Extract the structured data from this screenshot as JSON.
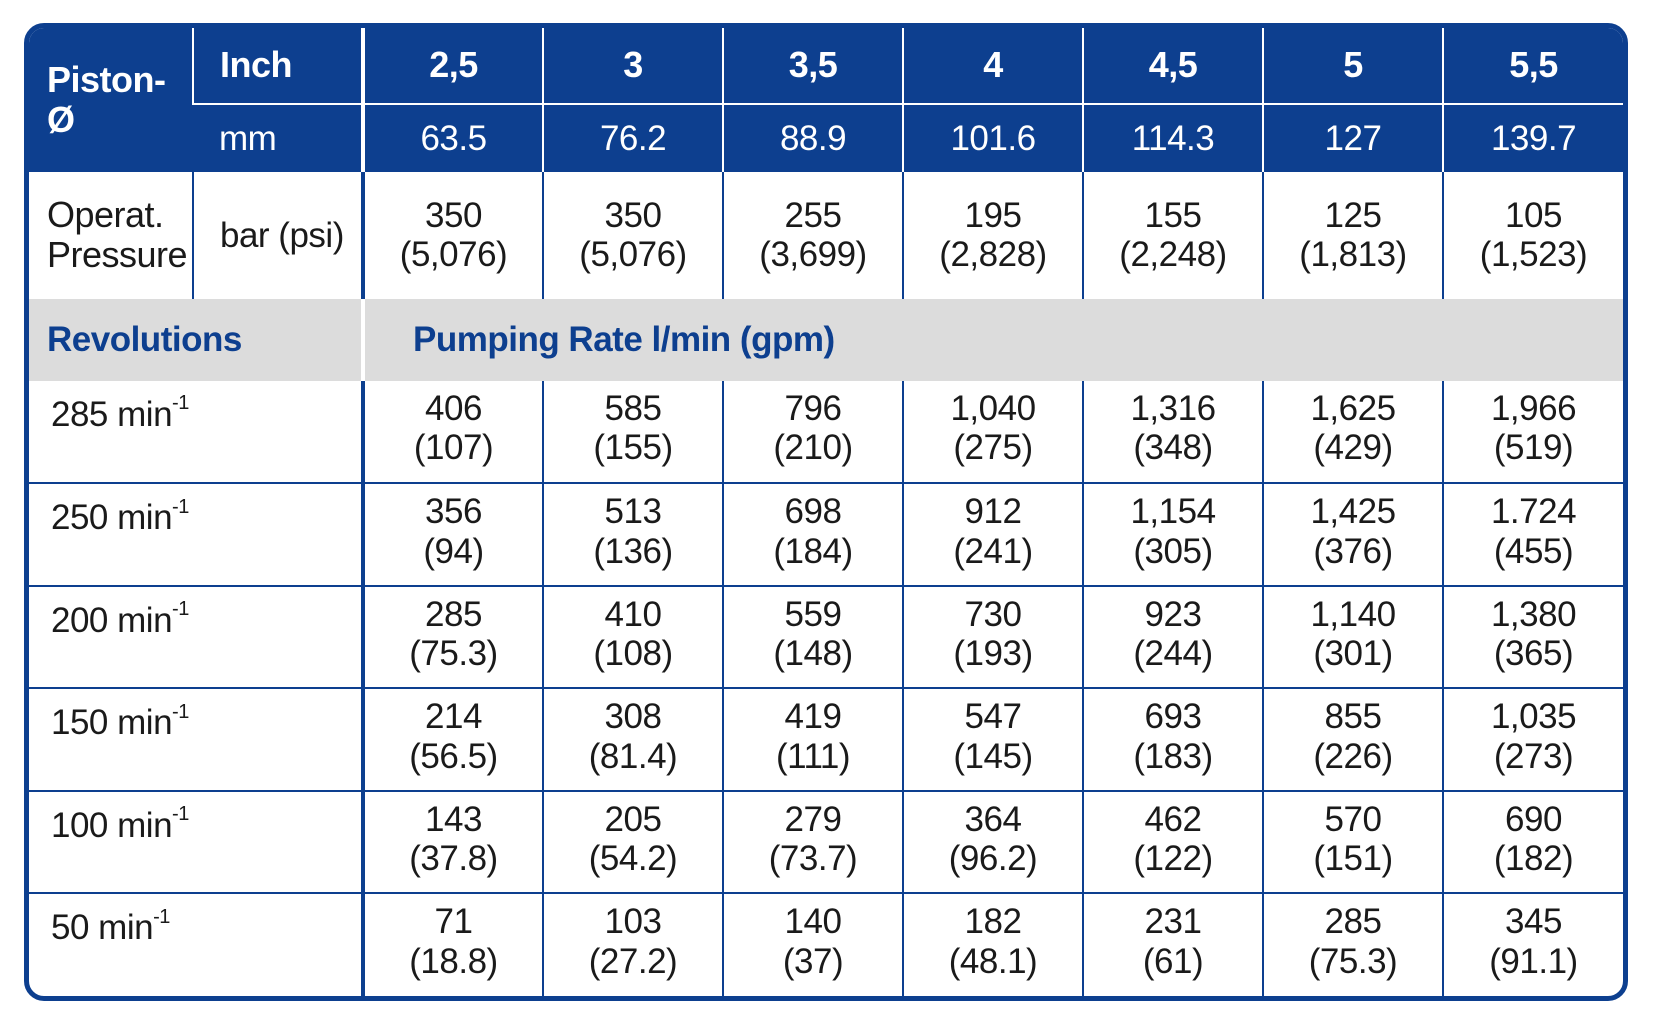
{
  "header": {
    "piston_label": "Piston-Ø",
    "inch_label": "Inch",
    "mm_label": "mm",
    "inch_values": [
      "2,5",
      "3",
      "3,5",
      "4",
      "4,5",
      "5",
      "5,5"
    ],
    "mm_values": [
      "63.5",
      "76.2",
      "88.9",
      "101.6",
      "114.3",
      "127",
      "139.7"
    ]
  },
  "pressure": {
    "label_line1": "Operat.",
    "label_line2": "Pressure",
    "unit": "bar (psi)",
    "values": [
      {
        "main": "350",
        "sub": "(5,076)"
      },
      {
        "main": "350",
        "sub": "(5,076)"
      },
      {
        "main": "255",
        "sub": "(3,699)"
      },
      {
        "main": "195",
        "sub": "(2,828)"
      },
      {
        "main": "155",
        "sub": "(2,248)"
      },
      {
        "main": "125",
        "sub": "(1,813)"
      },
      {
        "main": "105",
        "sub": "(1,523)"
      }
    ]
  },
  "section": {
    "revolutions_label": "Revolutions",
    "pumping_rate_label": "Pumping Rate l/min (gpm)"
  },
  "rows": [
    {
      "rev": "285",
      "unit": "min",
      "exp": "-1",
      "values": [
        {
          "main": "406",
          "sub": "(107)"
        },
        {
          "main": "585",
          "sub": "(155)"
        },
        {
          "main": "796",
          "sub": "(210)"
        },
        {
          "main": "1,040",
          "sub": "(275)"
        },
        {
          "main": "1,316",
          "sub": "(348)"
        },
        {
          "main": "1,625",
          "sub": "(429)"
        },
        {
          "main": "1,966",
          "sub": "(519)"
        }
      ]
    },
    {
      "rev": "250",
      "unit": "min",
      "exp": "-1",
      "values": [
        {
          "main": "356",
          "sub": "(94)"
        },
        {
          "main": "513",
          "sub": "(136)"
        },
        {
          "main": "698",
          "sub": "(184)"
        },
        {
          "main": "912",
          "sub": "(241)"
        },
        {
          "main": "1,154",
          "sub": "(305)"
        },
        {
          "main": "1,425",
          "sub": "(376)"
        },
        {
          "main": "1.724",
          "sub": "(455)"
        }
      ]
    },
    {
      "rev": "200",
      "unit": "min",
      "exp": "-1",
      "values": [
        {
          "main": "285",
          "sub": "(75.3)"
        },
        {
          "main": "410",
          "sub": "(108)"
        },
        {
          "main": "559",
          "sub": "(148)"
        },
        {
          "main": "730",
          "sub": "(193)"
        },
        {
          "main": "923",
          "sub": "(244)"
        },
        {
          "main": "1,140",
          "sub": "(301)"
        },
        {
          "main": "1,380",
          "sub": "(365)"
        }
      ]
    },
    {
      "rev": "150",
      "unit": "min",
      "exp": "-1",
      "values": [
        {
          "main": "214",
          "sub": "(56.5)"
        },
        {
          "main": "308",
          "sub": "(81.4)"
        },
        {
          "main": "419",
          "sub": "(111)"
        },
        {
          "main": "547",
          "sub": "(145)"
        },
        {
          "main": "693",
          "sub": "(183)"
        },
        {
          "main": "855",
          "sub": "(226)"
        },
        {
          "main": "1,035",
          "sub": "(273)"
        }
      ]
    },
    {
      "rev": "100",
      "unit": "min",
      "exp": "-1",
      "values": [
        {
          "main": "143",
          "sub": "(37.8)"
        },
        {
          "main": "205",
          "sub": "(54.2)"
        },
        {
          "main": "279",
          "sub": "(73.7)"
        },
        {
          "main": "364",
          "sub": "(96.2)"
        },
        {
          "main": "462",
          "sub": "(122)"
        },
        {
          "main": "570",
          "sub": "(151)"
        },
        {
          "main": "690",
          "sub": "(182)"
        }
      ]
    },
    {
      "rev": "50",
      "unit": "min",
      "exp": "-1",
      "values": [
        {
          "main": "71",
          "sub": "(18.8)"
        },
        {
          "main": "103",
          "sub": "(27.2)"
        },
        {
          "main": "140",
          "sub": "(37)"
        },
        {
          "main": "182",
          "sub": "(48.1)"
        },
        {
          "main": "231",
          "sub": "(61)"
        },
        {
          "main": "285",
          "sub": "(75.3)"
        },
        {
          "main": "345",
          "sub": "(91.1)"
        }
      ]
    }
  ]
}
